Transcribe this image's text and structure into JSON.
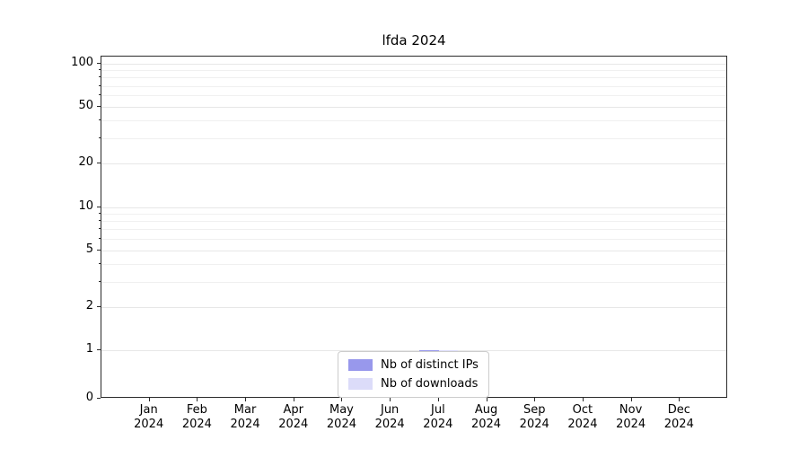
{
  "chart_data": {
    "type": "bar",
    "title": "lfda 2024",
    "categories": [
      "Jan 2024",
      "Feb 2024",
      "Mar 2024",
      "Apr 2024",
      "May 2024",
      "Jun 2024",
      "Jul 2024",
      "Aug 2024",
      "Sep 2024",
      "Oct 2024",
      "Nov 2024",
      "Dec 2024"
    ],
    "series": [
      {
        "name": "Nb of distinct IPs",
        "color": "#9898ec",
        "values": [
          0,
          0,
          0,
          0,
          0,
          0,
          1,
          0,
          0,
          0,
          0,
          0
        ]
      },
      {
        "name": "Nb of downloads",
        "color": "#dcdcf9",
        "values": [
          0,
          0,
          0,
          0,
          0,
          0,
          1,
          0,
          0,
          0,
          0,
          0
        ]
      }
    ],
    "yscale": "symlog",
    "ylim": [
      0,
      100
    ],
    "y_ticks": [
      0,
      1,
      2,
      5,
      10,
      20,
      50,
      100
    ],
    "y_minor_ticks": [
      3,
      4,
      6,
      7,
      8,
      9,
      30,
      40,
      60,
      70,
      80,
      90
    ],
    "grid": "horizontal",
    "legend_position": "lower center"
  }
}
